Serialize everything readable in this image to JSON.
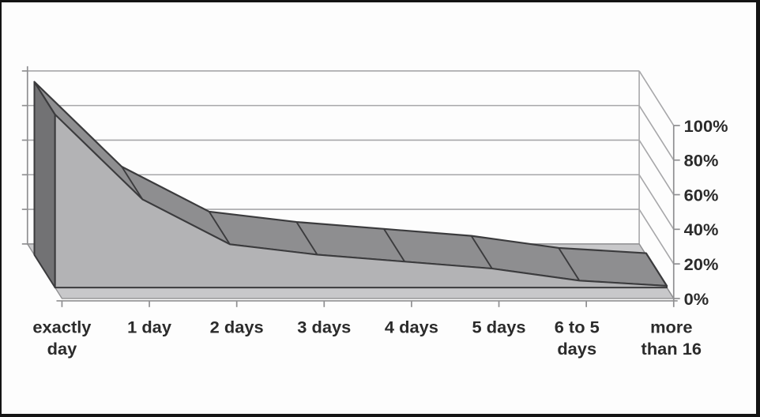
{
  "page": {
    "background": "#fdfdfd",
    "frame_color": "#141414"
  },
  "chart_data": {
    "type": "area",
    "style": "3d-area",
    "title": "",
    "xlabel": "",
    "ylabel": "",
    "legend": "none",
    "grid": true,
    "categories": [
      "exactly day",
      "1 day",
      "2 days",
      "3 days",
      "4 days",
      "5 days",
      "6 to 5 days",
      "more than 16"
    ],
    "category_label_lines": [
      [
        "exactly",
        "day"
      ],
      [
        "1 day"
      ],
      [
        "2 days"
      ],
      [
        "3 days"
      ],
      [
        "4 days"
      ],
      [
        "5 days"
      ],
      [
        "6 to 5",
        "days"
      ],
      [
        "more",
        "than 16"
      ]
    ],
    "values": [
      100,
      51,
      25,
      19,
      15,
      11,
      4,
      1
    ],
    "unit": "%",
    "ylim": [
      0,
      100
    ],
    "y_tick_values": [
      0,
      20,
      40,
      60,
      80,
      100
    ],
    "y_tick_labels": [
      "0%",
      "20%",
      "40%",
      "60%",
      "80%",
      "100%"
    ],
    "colors": {
      "area_front": "#b3b3b5",
      "area_top": "#8e8e90",
      "area_side": "#727274",
      "area_outline": "#3b3b3d",
      "floor": "#c8c8ca",
      "gridline": "#a7a7a9",
      "axis": "#8f8f91",
      "label_text": "#2b2b2b"
    }
  }
}
